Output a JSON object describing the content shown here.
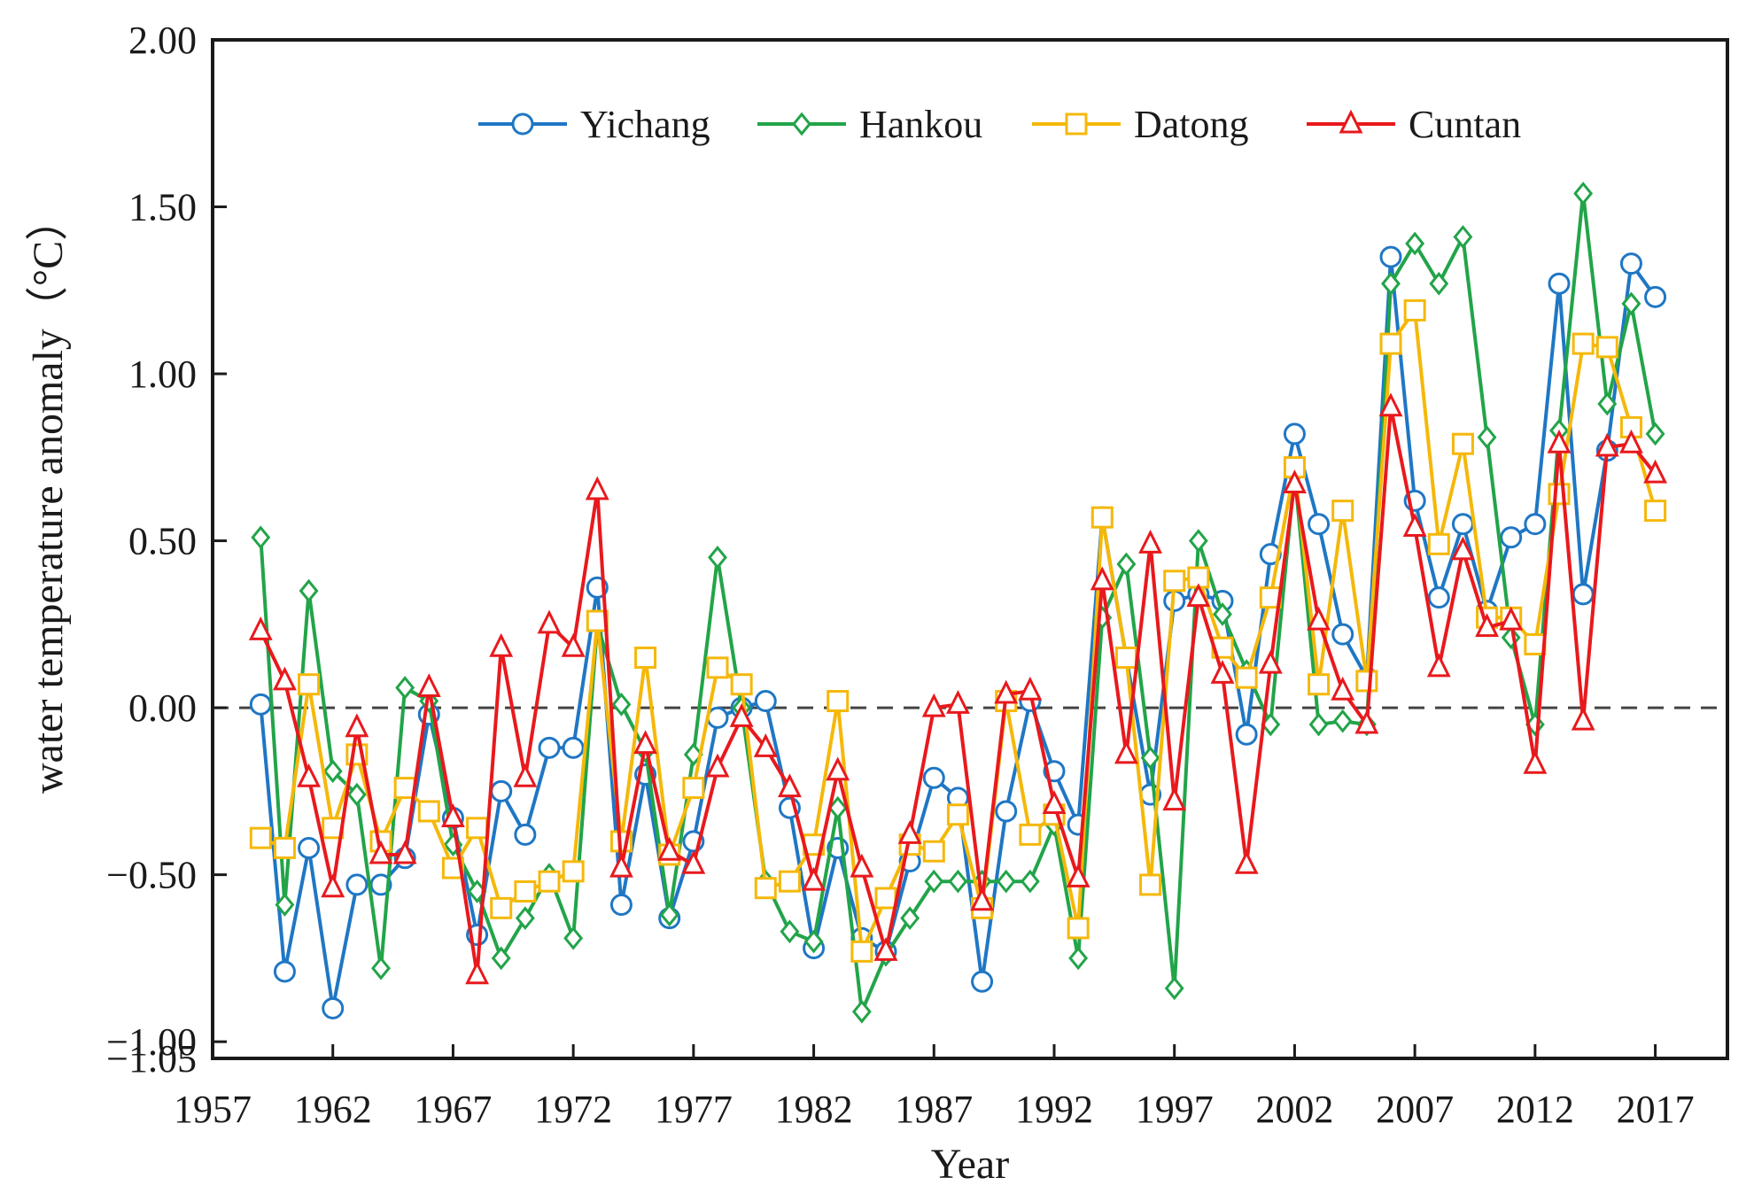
{
  "chart_data": {
    "type": "line",
    "title": "",
    "xlabel": "Year",
    "ylabel": "water temperature anomaly（°C）",
    "xlim": [
      1957,
      2020
    ],
    "ylim": [
      -1.05,
      2.0
    ],
    "x_ticks": [
      1957,
      1962,
      1967,
      1972,
      1977,
      1982,
      1987,
      1992,
      1997,
      2002,
      2007,
      2012,
      2017
    ],
    "x_tick_labels": [
      "1957",
      "1962",
      "1967",
      "1972",
      "1977",
      "1982",
      "1987",
      "1992",
      "1997",
      "2002",
      "2007",
      "2012",
      "2017"
    ],
    "y_ticks": [
      -1.05,
      -1.0,
      -0.5,
      0.0,
      0.5,
      1.0,
      1.5,
      2.0
    ],
    "y_tick_labels": [
      "−1.05",
      "−1.00",
      "−0.50",
      "0.00",
      "0.50",
      "1.00",
      "1.50",
      "2.00"
    ],
    "grid": false,
    "legend_position": "top",
    "reference_line": {
      "y": 0.0,
      "style": "dashed",
      "color": "#444444"
    },
    "x": [
      1959,
      1960,
      1961,
      1962,
      1963,
      1964,
      1965,
      1966,
      1967,
      1968,
      1969,
      1970,
      1971,
      1972,
      1973,
      1974,
      1975,
      1976,
      1977,
      1978,
      1979,
      1980,
      1981,
      1982,
      1983,
      1984,
      1985,
      1986,
      1987,
      1988,
      1989,
      1990,
      1991,
      1992,
      1993,
      1994,
      1995,
      1996,
      1997,
      1998,
      1999,
      2000,
      2001,
      2002,
      2003,
      2004,
      2005,
      2006,
      2007,
      2008,
      2009,
      2010,
      2011,
      2012,
      2013,
      2014,
      2015,
      2016,
      2017
    ],
    "series": [
      {
        "name": "Yichang",
        "color": "#1f77c4",
        "marker": "circle",
        "values": [
          0.01,
          -0.79,
          -0.42,
          -0.9,
          -0.53,
          -0.53,
          -0.45,
          -0.02,
          -0.33,
          -0.68,
          -0.25,
          -0.38,
          -0.12,
          -0.12,
          0.36,
          -0.59,
          -0.2,
          -0.63,
          -0.4,
          -0.03,
          0.0,
          0.02,
          -0.3,
          -0.72,
          -0.42,
          -0.69,
          -0.73,
          -0.46,
          -0.21,
          -0.27,
          -0.82,
          -0.31,
          0.02,
          -0.19,
          -0.35,
          0.57,
          0.15,
          -0.26,
          0.32,
          0.34,
          0.32,
          -0.08,
          0.46,
          0.82,
          0.55,
          0.22,
          0.09,
          1.35,
          0.62,
          0.33,
          0.55,
          0.29,
          0.51,
          0.55,
          1.27,
          0.34,
          0.77,
          1.33,
          1.23
        ]
      },
      {
        "name": "Hankou",
        "color": "#22a449",
        "marker": "diamond",
        "values": [
          0.51,
          -0.59,
          0.35,
          -0.19,
          -0.26,
          -0.78,
          0.06,
          0.02,
          -0.41,
          -0.55,
          -0.75,
          -0.63,
          -0.5,
          -0.69,
          0.25,
          0.01,
          -0.13,
          -0.62,
          -0.14,
          0.45,
          0.0,
          -0.52,
          -0.67,
          -0.7,
          -0.3,
          -0.91,
          -0.74,
          -0.63,
          -0.52,
          -0.52,
          -0.52,
          -0.52,
          -0.52,
          -0.35,
          -0.75,
          0.27,
          0.43,
          -0.15,
          -0.84,
          0.5,
          0.28,
          0.11,
          -0.05,
          0.7,
          -0.05,
          -0.04,
          -0.05,
          1.27,
          1.39,
          1.27,
          1.41,
          0.81,
          0.21,
          -0.05,
          0.83,
          1.54,
          0.91,
          1.21,
          0.82
        ]
      },
      {
        "name": "Datong",
        "color": "#f5b80a",
        "marker": "square",
        "values": [
          -0.39,
          -0.42,
          0.07,
          -0.36,
          -0.14,
          -0.4,
          -0.24,
          -0.31,
          -0.48,
          -0.36,
          -0.6,
          -0.55,
          -0.52,
          -0.49,
          0.26,
          -0.4,
          0.15,
          -0.44,
          -0.24,
          0.12,
          0.07,
          -0.54,
          -0.52,
          -0.41,
          0.02,
          -0.73,
          -0.57,
          -0.41,
          -0.43,
          -0.32,
          -0.6,
          0.02,
          -0.38,
          -0.32,
          -0.66,
          0.57,
          0.15,
          -0.53,
          0.38,
          0.39,
          0.18,
          0.09,
          0.33,
          0.72,
          0.07,
          0.59,
          0.08,
          1.09,
          1.19,
          0.49,
          0.79,
          0.27,
          0.27,
          0.19,
          0.64,
          1.09,
          1.08,
          0.84,
          0.59
        ]
      },
      {
        "name": "Cuntan",
        "color": "#e8191d",
        "marker": "triangle",
        "values": [
          0.23,
          0.08,
          -0.21,
          -0.54,
          -0.06,
          -0.44,
          -0.44,
          0.06,
          -0.33,
          -0.8,
          0.18,
          -0.21,
          0.25,
          0.18,
          0.65,
          -0.48,
          -0.11,
          -0.43,
          -0.47,
          -0.18,
          -0.03,
          -0.12,
          -0.24,
          -0.52,
          -0.19,
          -0.48,
          -0.73,
          -0.38,
          0.0,
          0.01,
          -0.58,
          0.04,
          0.05,
          -0.29,
          -0.51,
          0.38,
          -0.14,
          0.49,
          -0.28,
          0.33,
          0.1,
          -0.47,
          0.13,
          0.67,
          0.26,
          0.05,
          -0.05,
          0.9,
          0.54,
          0.12,
          0.47,
          0.24,
          0.26,
          -0.17,
          0.79,
          -0.04,
          0.78,
          0.79,
          0.7
        ]
      }
    ]
  }
}
